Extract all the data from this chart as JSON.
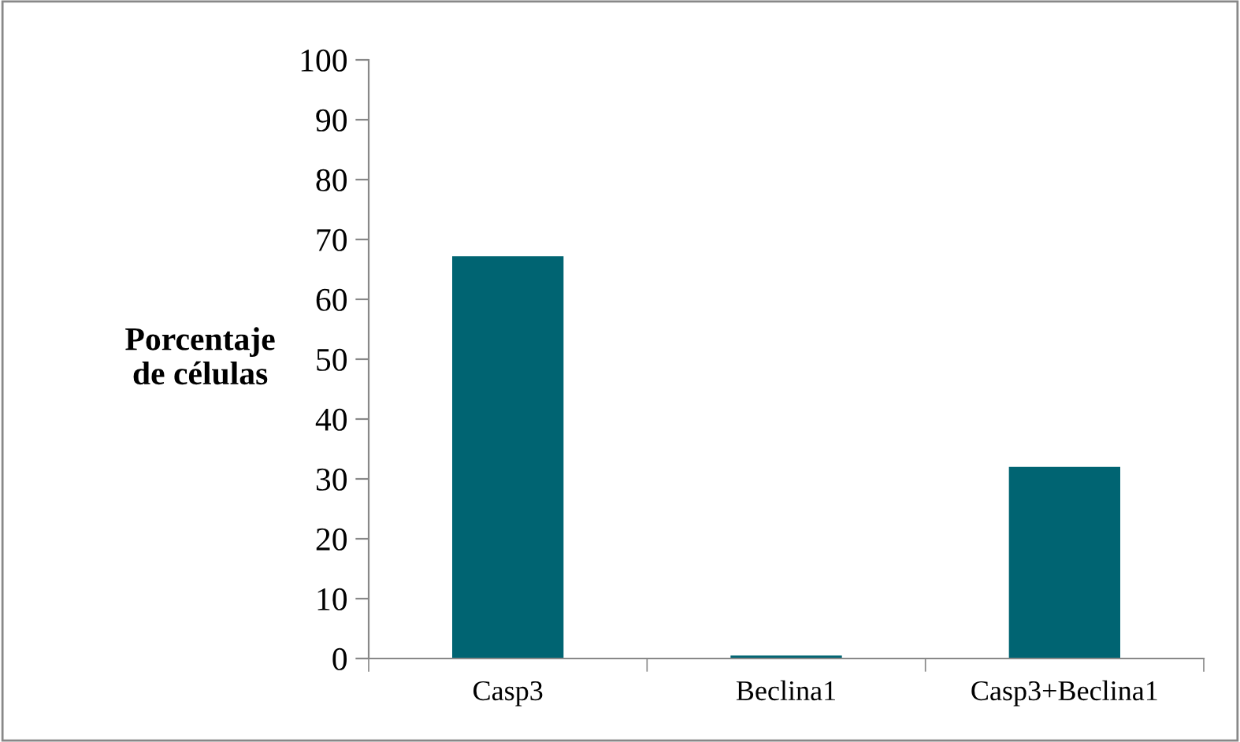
{
  "chart_data": {
    "type": "bar",
    "ylabel": "Porcentaje\nde células",
    "categories": [
      "Casp3",
      "Beclina1",
      "Casp3+Beclina1"
    ],
    "values": [
      67.2,
      0.5,
      32
    ],
    "color": "#006472",
    "ylim": [
      0,
      100
    ],
    "yticks": [
      0,
      10,
      20,
      30,
      40,
      50,
      60,
      70,
      80,
      90,
      100
    ],
    "grid": false,
    "legend": false
  }
}
